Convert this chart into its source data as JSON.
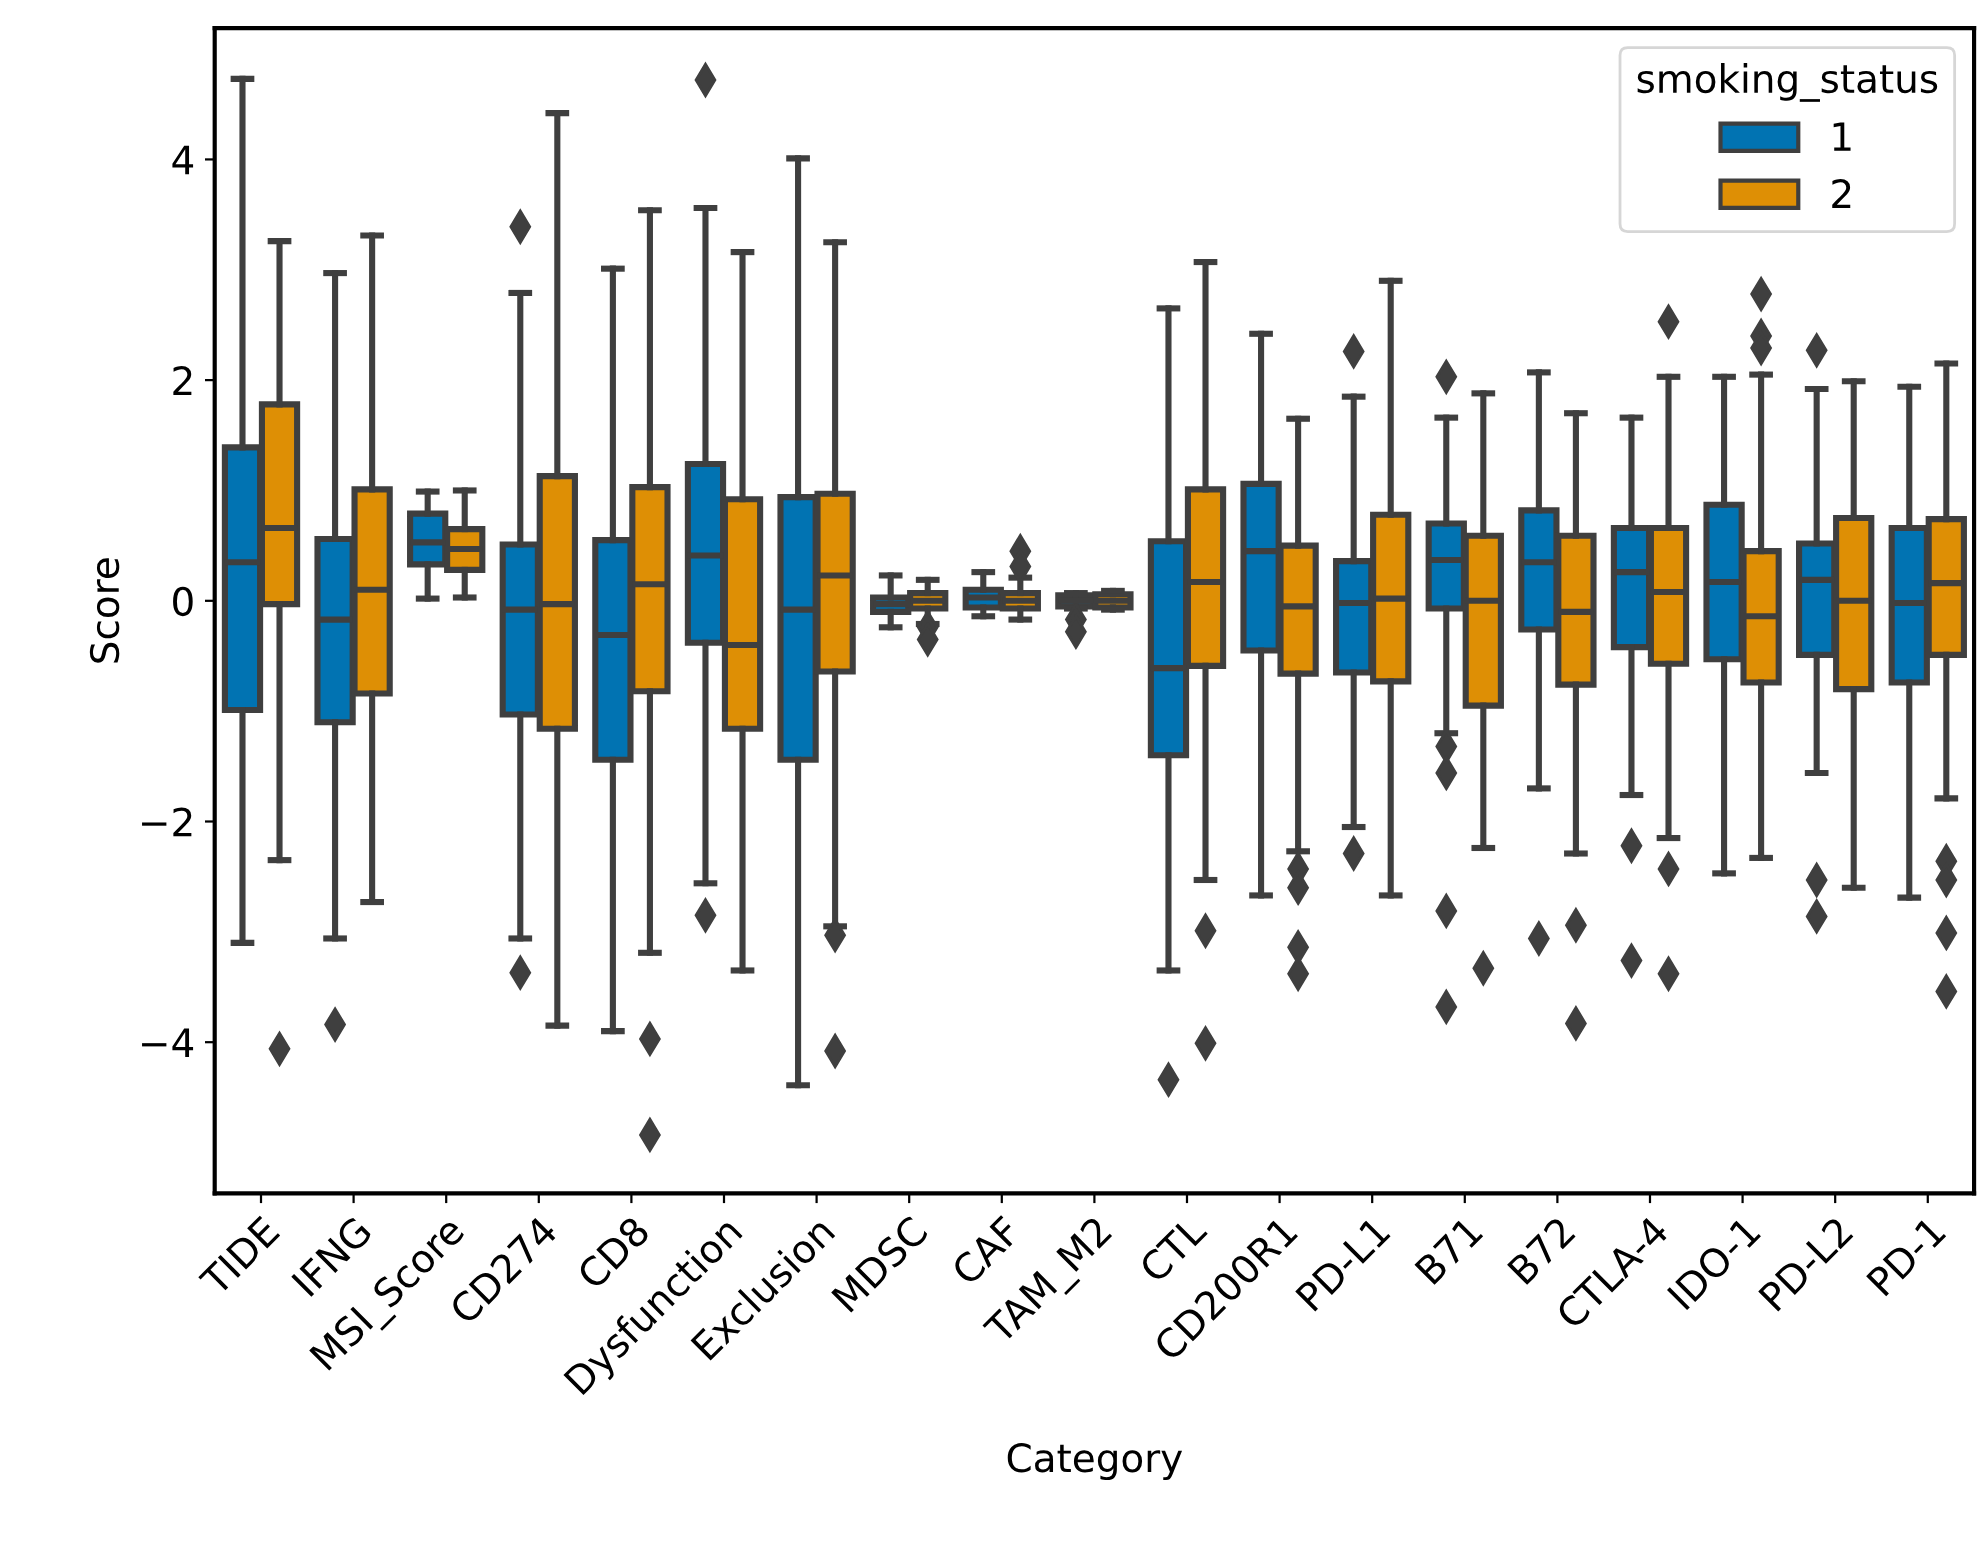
{
  "chart_data": {
    "type": "box",
    "xlabel": "Category",
    "ylabel": "Score",
    "legend_title": "smoking_status",
    "legend": "top right",
    "marker": "diamond",
    "categories": [
      "TIDE",
      "IFNG",
      "MSI_Score",
      "CD274",
      "CD8",
      "Dysfunction",
      "Exclusion",
      "MDSC",
      "CAF",
      "TAM_M2",
      "CTL",
      "CD200R1",
      "PD-L1",
      "B71",
      "B72",
      "CTLA-4",
      "IDO-1",
      "PD-L2",
      "PD-1"
    ],
    "ylim": [
      -5.37,
      5.19
    ],
    "yticks": [
      {
        "value": -4,
        "label": "−4"
      },
      {
        "value": -2,
        "label": "−2"
      },
      0,
      2,
      4
    ],
    "series": [
      {
        "name": "1",
        "color": "#0173b2",
        "boxes": [
          {
            "low": -3.1,
            "q1": -0.99,
            "median": 0.35,
            "q3": 1.39,
            "high": 4.73
          },
          {
            "low": -3.06,
            "q1": -1.1,
            "median": -0.17,
            "q3": 0.56,
            "high": 2.97,
            "outliers": [
              -3.84
            ]
          },
          {
            "low": 0.02,
            "q1": 0.33,
            "median": 0.53,
            "q3": 0.79,
            "high": 0.99
          },
          {
            "low": -3.06,
            "q1": -1.03,
            "median": -0.08,
            "q3": 0.51,
            "high": 2.79,
            "outliers": [
              3.39,
              -3.37
            ]
          },
          {
            "low": -3.9,
            "q1": -1.44,
            "median": -0.31,
            "q3": 0.55,
            "high": 3.01
          },
          {
            "low": -2.56,
            "q1": -0.38,
            "median": 0.41,
            "q3": 1.24,
            "high": 3.56,
            "outliers": [
              4.72,
              -2.85
            ]
          },
          {
            "low": -4.39,
            "q1": -1.44,
            "median": -0.08,
            "q3": 0.94,
            "high": 4.01
          },
          {
            "low": -0.24,
            "q1": -0.1,
            "median": -0.03,
            "q3": 0.03,
            "high": 0.23
          },
          {
            "low": -0.14,
            "q1": -0.06,
            "median": 0.03,
            "q3": 0.1,
            "high": 0.26
          },
          {
            "low": -0.07,
            "q1": -0.05,
            "median": 0.0,
            "q3": 0.05,
            "high": 0.07,
            "outliers": [
              -0.17,
              -0.28
            ]
          },
          {
            "low": -3.35,
            "q1": -1.4,
            "median": -0.61,
            "q3": 0.54,
            "high": 2.65,
            "outliers": [
              -4.34
            ]
          },
          {
            "low": -2.67,
            "q1": -0.45,
            "median": 0.45,
            "q3": 1.06,
            "high": 2.42
          },
          {
            "low": -2.05,
            "q1": -0.65,
            "median": -0.02,
            "q3": 0.36,
            "high": 1.85,
            "outliers": [
              2.26,
              -2.29
            ]
          },
          {
            "low": -1.2,
            "q1": -0.07,
            "median": 0.37,
            "q3": 0.7,
            "high": 1.66,
            "outliers": [
              2.03,
              -1.32,
              -1.56,
              -2.81,
              -3.68
            ]
          },
          {
            "low": -1.7,
            "q1": -0.26,
            "median": 0.35,
            "q3": 0.82,
            "high": 2.07,
            "outliers": [
              -3.06
            ]
          },
          {
            "low": -1.76,
            "q1": -0.42,
            "median": 0.26,
            "q3": 0.66,
            "high": 1.66,
            "outliers": [
              -2.22,
              -3.26
            ]
          },
          {
            "low": -2.47,
            "q1": -0.53,
            "median": 0.17,
            "q3": 0.87,
            "high": 2.03
          },
          {
            "low": -1.56,
            "q1": -0.49,
            "median": 0.19,
            "q3": 0.52,
            "high": 1.92,
            "outliers": [
              2.27,
              -2.53,
              -2.86
            ]
          },
          {
            "low": -2.69,
            "q1": -0.74,
            "median": -0.02,
            "q3": 0.66,
            "high": 1.94
          }
        ]
      },
      {
        "name": "2",
        "color": "#de8f05",
        "boxes": [
          {
            "low": -2.35,
            "q1": -0.03,
            "median": 0.66,
            "q3": 1.78,
            "high": 3.26,
            "outliers": [
              -4.06
            ]
          },
          {
            "low": -2.73,
            "q1": -0.84,
            "median": 0.1,
            "q3": 1.01,
            "high": 3.31
          },
          {
            "low": 0.03,
            "q1": 0.28,
            "median": 0.47,
            "q3": 0.65,
            "high": 1.0
          },
          {
            "low": -3.85,
            "q1": -1.16,
            "median": -0.03,
            "q3": 1.13,
            "high": 4.42
          },
          {
            "low": -3.19,
            "q1": -0.82,
            "median": 0.15,
            "q3": 1.03,
            "high": 3.54,
            "outliers": [
              -3.97,
              -4.84
            ]
          },
          {
            "low": -3.35,
            "q1": -1.16,
            "median": -0.4,
            "q3": 0.92,
            "high": 3.16
          },
          {
            "low": -2.95,
            "q1": -0.64,
            "median": 0.23,
            "q3": 0.97,
            "high": 3.25,
            "outliers": [
              -3.03,
              -4.08
            ]
          },
          {
            "low": -0.21,
            "q1": -0.07,
            "median": 0.0,
            "q3": 0.07,
            "high": 0.19,
            "outliers": [
              -0.24,
              -0.35
            ]
          },
          {
            "low": -0.17,
            "q1": -0.07,
            "median": 0.0,
            "q3": 0.07,
            "high": 0.21,
            "outliers": [
              0.45,
              0.31
            ]
          },
          {
            "low": -0.08,
            "q1": -0.06,
            "median": 0.0,
            "q3": 0.06,
            "high": 0.09
          },
          {
            "low": -2.53,
            "q1": -0.59,
            "median": 0.17,
            "q3": 1.01,
            "high": 3.07,
            "outliers": [
              -2.99,
              -4.01
            ]
          },
          {
            "low": -2.27,
            "q1": -0.66,
            "median": -0.05,
            "q3": 0.5,
            "high": 1.65,
            "outliers": [
              -2.43,
              -2.6,
              -3.14,
              -3.38
            ]
          },
          {
            "low": -2.67,
            "q1": -0.73,
            "median": 0.02,
            "q3": 0.78,
            "high": 2.9
          },
          {
            "low": -2.24,
            "q1": -0.95,
            "median": 0.0,
            "q3": 0.59,
            "high": 1.88,
            "outliers": [
              -3.33
            ]
          },
          {
            "low": -2.29,
            "q1": -0.76,
            "median": -0.1,
            "q3": 0.59,
            "high": 1.7,
            "outliers": [
              -2.94,
              -3.83
            ]
          },
          {
            "low": -2.15,
            "q1": -0.57,
            "median": 0.08,
            "q3": 0.66,
            "high": 2.03,
            "outliers": [
              2.53,
              -2.43,
              -3.38
            ]
          },
          {
            "low": -2.33,
            "q1": -0.74,
            "median": -0.14,
            "q3": 0.45,
            "high": 2.05,
            "outliers": [
              2.78,
              2.4,
              2.29
            ]
          },
          {
            "low": -2.6,
            "q1": -0.8,
            "median": 0.0,
            "q3": 0.75,
            "high": 1.99
          },
          {
            "low": -1.79,
            "q1": -0.49,
            "median": 0.16,
            "q3": 0.74,
            "high": 2.15,
            "outliers": [
              -2.36,
              -2.53,
              -3.01,
              -3.54
            ]
          }
        ]
      }
    ]
  }
}
